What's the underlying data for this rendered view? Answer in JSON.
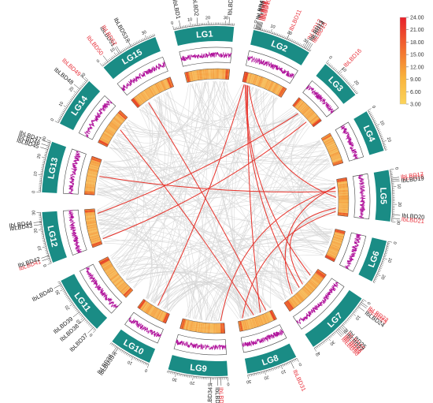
{
  "colors": {
    "chromosome": "#1a8c85",
    "chromosome_text": "#ffffff",
    "gene_red": "#e8323c",
    "gene_black": "#222222",
    "syntenic_gray": "#d6d6d6",
    "syntenic_red": "#e8322a",
    "gc_line": "#b0129b",
    "heat_low": "#f9d978",
    "heat_high": "#e43020"
  },
  "chromosomes": [
    {
      "label": "LG1",
      "length": 35
    },
    {
      "label": "LG2",
      "length": 35
    },
    {
      "label": "LG3",
      "length": 25
    },
    {
      "label": "LG4",
      "length": 25
    },
    {
      "label": "LG5",
      "length": 30
    },
    {
      "label": "LG6",
      "length": 25
    },
    {
      "label": "LG7",
      "length": 40
    },
    {
      "label": "LG8",
      "length": 30
    },
    {
      "label": "LG9",
      "length": 35
    },
    {
      "label": "LG10",
      "length": 25
    },
    {
      "label": "LG11",
      "length": 35
    },
    {
      "label": "LG12",
      "length": 30
    },
    {
      "label": "LG13",
      "length": 30
    },
    {
      "label": "LG14",
      "length": 30
    },
    {
      "label": "LG15",
      "length": 35
    }
  ],
  "genes": [
    {
      "name": "IbLBD1",
      "chr": 0,
      "pos": 4,
      "color": "black"
    },
    {
      "name": "IbLBD2",
      "chr": 0,
      "pos": 14,
      "color": "black"
    },
    {
      "name": "IbLBD3",
      "chr": 0,
      "pos": 32,
      "color": "black"
    },
    {
      "name": "IbLBD4",
      "chr": 1,
      "pos": 1,
      "color": "black"
    },
    {
      "name": "IbLBD5",
      "chr": 1,
      "pos": 1.5,
      "color": "black"
    },
    {
      "name": "IbLBD6",
      "chr": 1,
      "pos": 2,
      "color": "black"
    },
    {
      "name": "IbLBD7",
      "chr": 1,
      "pos": 2.5,
      "color": "red"
    },
    {
      "name": "IbLBD8",
      "chr": 1,
      "pos": 3,
      "color": "red"
    },
    {
      "name": "IbLBD9",
      "chr": 1,
      "pos": 3.5,
      "color": "red"
    },
    {
      "name": "IbLBD10",
      "chr": 1,
      "pos": 4,
      "color": "red"
    },
    {
      "name": "IbLBD11",
      "chr": 1,
      "pos": 20,
      "color": "red"
    },
    {
      "name": "IbLBD12",
      "chr": 1,
      "pos": 31,
      "color": "red"
    },
    {
      "name": "IbLBD13",
      "chr": 1,
      "pos": 32,
      "color": "black"
    },
    {
      "name": "IbLBD14",
      "chr": 1,
      "pos": 33,
      "color": "black"
    },
    {
      "name": "IbLBD15",
      "chr": 1,
      "pos": 34,
      "color": "red"
    },
    {
      "name": "IbLBD16",
      "chr": 2,
      "pos": 9,
      "color": "red"
    },
    {
      "name": "IbLBD17",
      "chr": 4,
      "pos": 5,
      "color": "red"
    },
    {
      "name": "IbLBD18",
      "chr": 4,
      "pos": 6,
      "color": "red"
    },
    {
      "name": "IbLBD19",
      "chr": 4,
      "pos": 7,
      "color": "black"
    },
    {
      "name": "IbLBD20",
      "chr": 4,
      "pos": 26,
      "color": "black"
    },
    {
      "name": "IbLBD21",
      "chr": 4,
      "pos": 28,
      "color": "red"
    },
    {
      "name": "IbLBD22",
      "chr": 6,
      "pos": 2,
      "color": "red"
    },
    {
      "name": "IbLBD23",
      "chr": 6,
      "pos": 3,
      "color": "red"
    },
    {
      "name": "IbLBD24",
      "chr": 6,
      "pos": 5,
      "color": "black"
    },
    {
      "name": "IbLBD25",
      "chr": 6,
      "pos": 19,
      "color": "black"
    },
    {
      "name": "IbLBD26",
      "chr": 6,
      "pos": 20,
      "color": "red"
    },
    {
      "name": "IbLBD27",
      "chr": 6,
      "pos": 21,
      "color": "black"
    },
    {
      "name": "IbLBD28",
      "chr": 6,
      "pos": 22,
      "color": "red"
    },
    {
      "name": "IbLBD29",
      "chr": 6,
      "pos": 23,
      "color": "red"
    },
    {
      "name": "IbLBD30",
      "chr": 6,
      "pos": 24,
      "color": "red"
    },
    {
      "name": "IbLBD31",
      "chr": 7,
      "pos": 4,
      "color": "red"
    },
    {
      "name": "IbLBD32",
      "chr": 8,
      "pos": 4,
      "color": "red"
    },
    {
      "name": "IbLBD33",
      "chr": 8,
      "pos": 6,
      "color": "black"
    },
    {
      "name": "IbLBD34",
      "chr": 8,
      "pos": 10,
      "color": "black"
    },
    {
      "name": "IbLBD35",
      "chr": 9,
      "pos": 20,
      "color": "black"
    },
    {
      "name": "IbLBD36",
      "chr": 9,
      "pos": 21,
      "color": "black"
    },
    {
      "name": "IbLBD37",
      "chr": 10,
      "pos": 2,
      "color": "black"
    },
    {
      "name": "IbLBD38",
      "chr": 10,
      "pos": 9,
      "color": "black"
    },
    {
      "name": "IbLBD39",
      "chr": 10,
      "pos": 14,
      "color": "black"
    },
    {
      "name": "IbLBD40",
      "chr": 10,
      "pos": 33,
      "color": "black"
    },
    {
      "name": "IbLBD41",
      "chr": 11,
      "pos": 3,
      "color": "red"
    },
    {
      "name": "IbLBD42",
      "chr": 11,
      "pos": 4.5,
      "color": "black"
    },
    {
      "name": "IbLBD43",
      "chr": 11,
      "pos": 23,
      "color": "black"
    },
    {
      "name": "IbLBD44",
      "chr": 11,
      "pos": 24.5,
      "color": "black"
    },
    {
      "name": "IbLBD45",
      "chr": 12,
      "pos": 25,
      "color": "black"
    },
    {
      "name": "IbLBD46",
      "chr": 12,
      "pos": 27,
      "color": "black"
    },
    {
      "name": "IbLBD47",
      "chr": 12,
      "pos": 29,
      "color": "black"
    },
    {
      "name": "IbLBD48",
      "chr": 13,
      "pos": 23,
      "color": "black"
    },
    {
      "name": "IbLBD49",
      "chr": 13,
      "pos": 29,
      "color": "red"
    },
    {
      "name": "IbLBD50",
      "chr": 14,
      "pos": 4,
      "color": "red"
    },
    {
      "name": "IbLBD51",
      "chr": 14,
      "pos": 12,
      "color": "black"
    },
    {
      "name": "IbLBD52",
      "chr": 14,
      "pos": 13,
      "color": "red"
    },
    {
      "name": "IbLBD53",
      "chr": 14,
      "pos": 20,
      "color": "black"
    }
  ],
  "red_links": [
    [
      1,
      4,
      6,
      8
    ],
    [
      1,
      5,
      7,
      10
    ],
    [
      1,
      6,
      4,
      15
    ],
    [
      1,
      3,
      6,
      22
    ],
    [
      2,
      8,
      11,
      26
    ],
    [
      4,
      6,
      6,
      30
    ],
    [
      4,
      7,
      8,
      3
    ],
    [
      4,
      24,
      6,
      18
    ],
    [
      4,
      27,
      7,
      26
    ],
    [
      14,
      10,
      7,
      5
    ],
    [
      13,
      18,
      7,
      16
    ],
    [
      11,
      4,
      2,
      18
    ],
    [
      12,
      16,
      4,
      10
    ],
    [
      1,
      2,
      9,
      12
    ]
  ],
  "heatmap_legend": {
    "ticks": [
      "24.00",
      "21.00",
      "18.00",
      "15.00",
      "12.00",
      "9.00",
      "6.00",
      "3.00"
    ],
    "min": 3,
    "max": 24
  }
}
